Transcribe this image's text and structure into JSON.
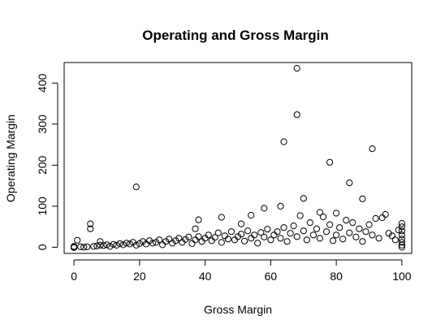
{
  "chart_data": {
    "type": "scatter",
    "title": "Operating and Gross Margin",
    "xlabel": "Gross Margin",
    "ylabel": "Operating Margin",
    "xlim": [
      -3,
      103
    ],
    "ylim": [
      -15,
      450
    ],
    "x_ticks": [
      0,
      20,
      40,
      60,
      80,
      100
    ],
    "y_ticks": [
      0,
      100,
      200,
      300,
      400
    ],
    "x_tick_labels": [
      "0",
      "20",
      "40",
      "60",
      "80",
      "100"
    ],
    "y_tick_labels": [
      "0",
      "100",
      "200",
      "300",
      "400"
    ],
    "marker": "open-circle",
    "grid": false,
    "legend": "none",
    "series": [
      {
        "points": [
          [
            0,
            0
          ],
          [
            0,
            -1
          ],
          [
            0,
            2
          ],
          [
            1,
            17
          ],
          [
            2,
            1
          ],
          [
            3,
            0
          ],
          [
            4,
            1
          ],
          [
            5,
            57
          ],
          [
            5,
            45
          ],
          [
            6,
            2
          ],
          [
            7,
            3
          ],
          [
            8,
            5
          ],
          [
            8,
            14
          ],
          [
            9,
            4
          ],
          [
            10,
            6
          ],
          [
            11,
            2
          ],
          [
            12,
            7
          ],
          [
            13,
            5
          ],
          [
            14,
            9
          ],
          [
            15,
            6
          ],
          [
            16,
            10
          ],
          [
            17,
            8
          ],
          [
            18,
            12
          ],
          [
            19,
            147
          ],
          [
            19,
            5
          ],
          [
            20,
            9
          ],
          [
            21,
            14
          ],
          [
            22,
            8
          ],
          [
            23,
            16
          ],
          [
            24,
            10
          ],
          [
            25,
            12
          ],
          [
            26,
            18
          ],
          [
            27,
            6
          ],
          [
            28,
            14
          ],
          [
            29,
            20
          ],
          [
            30,
            10
          ],
          [
            31,
            16
          ],
          [
            32,
            22
          ],
          [
            33,
            12
          ],
          [
            34,
            19
          ],
          [
            35,
            25
          ],
          [
            36,
            9
          ],
          [
            37,
            45
          ],
          [
            37,
            18
          ],
          [
            38,
            67
          ],
          [
            38,
            26
          ],
          [
            39,
            14
          ],
          [
            40,
            22
          ],
          [
            41,
            30
          ],
          [
            42,
            16
          ],
          [
            43,
            24
          ],
          [
            44,
            35
          ],
          [
            45,
            73
          ],
          [
            45,
            12
          ],
          [
            46,
            28
          ],
          [
            47,
            20
          ],
          [
            48,
            38
          ],
          [
            49,
            18
          ],
          [
            50,
            26
          ],
          [
            51,
            57
          ],
          [
            51,
            32
          ],
          [
            52,
            15
          ],
          [
            53,
            40
          ],
          [
            54,
            78
          ],
          [
            54,
            22
          ],
          [
            55,
            30
          ],
          [
            56,
            10
          ],
          [
            57,
            36
          ],
          [
            58,
            95
          ],
          [
            58,
            25
          ],
          [
            59,
            44
          ],
          [
            60,
            18
          ],
          [
            61,
            30
          ],
          [
            62,
            38
          ],
          [
            63,
            100
          ],
          [
            63,
            22
          ],
          [
            64,
            257
          ],
          [
            64,
            48
          ],
          [
            65,
            14
          ],
          [
            66,
            34
          ],
          [
            67,
            52
          ],
          [
            68,
            436
          ],
          [
            68,
            323
          ],
          [
            68,
            26
          ],
          [
            69,
            77
          ],
          [
            70,
            119
          ],
          [
            70,
            40
          ],
          [
            71,
            18
          ],
          [
            72,
            60
          ],
          [
            73,
            30
          ],
          [
            74,
            45
          ],
          [
            75,
            85
          ],
          [
            75,
            22
          ],
          [
            76,
            74
          ],
          [
            77,
            38
          ],
          [
            78,
            207
          ],
          [
            78,
            55
          ],
          [
            79,
            16
          ],
          [
            80,
            83
          ],
          [
            80,
            30
          ],
          [
            81,
            48
          ],
          [
            82,
            20
          ],
          [
            83,
            66
          ],
          [
            84,
            157
          ],
          [
            84,
            35
          ],
          [
            85,
            60
          ],
          [
            86,
            25
          ],
          [
            87,
            45
          ],
          [
            88,
            118
          ],
          [
            88,
            14
          ],
          [
            89,
            38
          ],
          [
            90,
            55
          ],
          [
            91,
            240
          ],
          [
            91,
            30
          ],
          [
            92,
            70
          ],
          [
            93,
            22
          ],
          [
            94,
            72
          ],
          [
            95,
            80
          ],
          [
            96,
            34
          ],
          [
            97,
            28
          ],
          [
            98,
            18
          ],
          [
            99,
            42
          ],
          [
            100,
            58
          ],
          [
            100,
            50
          ],
          [
            100,
            40
          ],
          [
            100,
            30
          ],
          [
            100,
            20
          ],
          [
            100,
            12
          ],
          [
            100,
            5
          ],
          [
            100,
            0
          ]
        ]
      }
    ]
  }
}
